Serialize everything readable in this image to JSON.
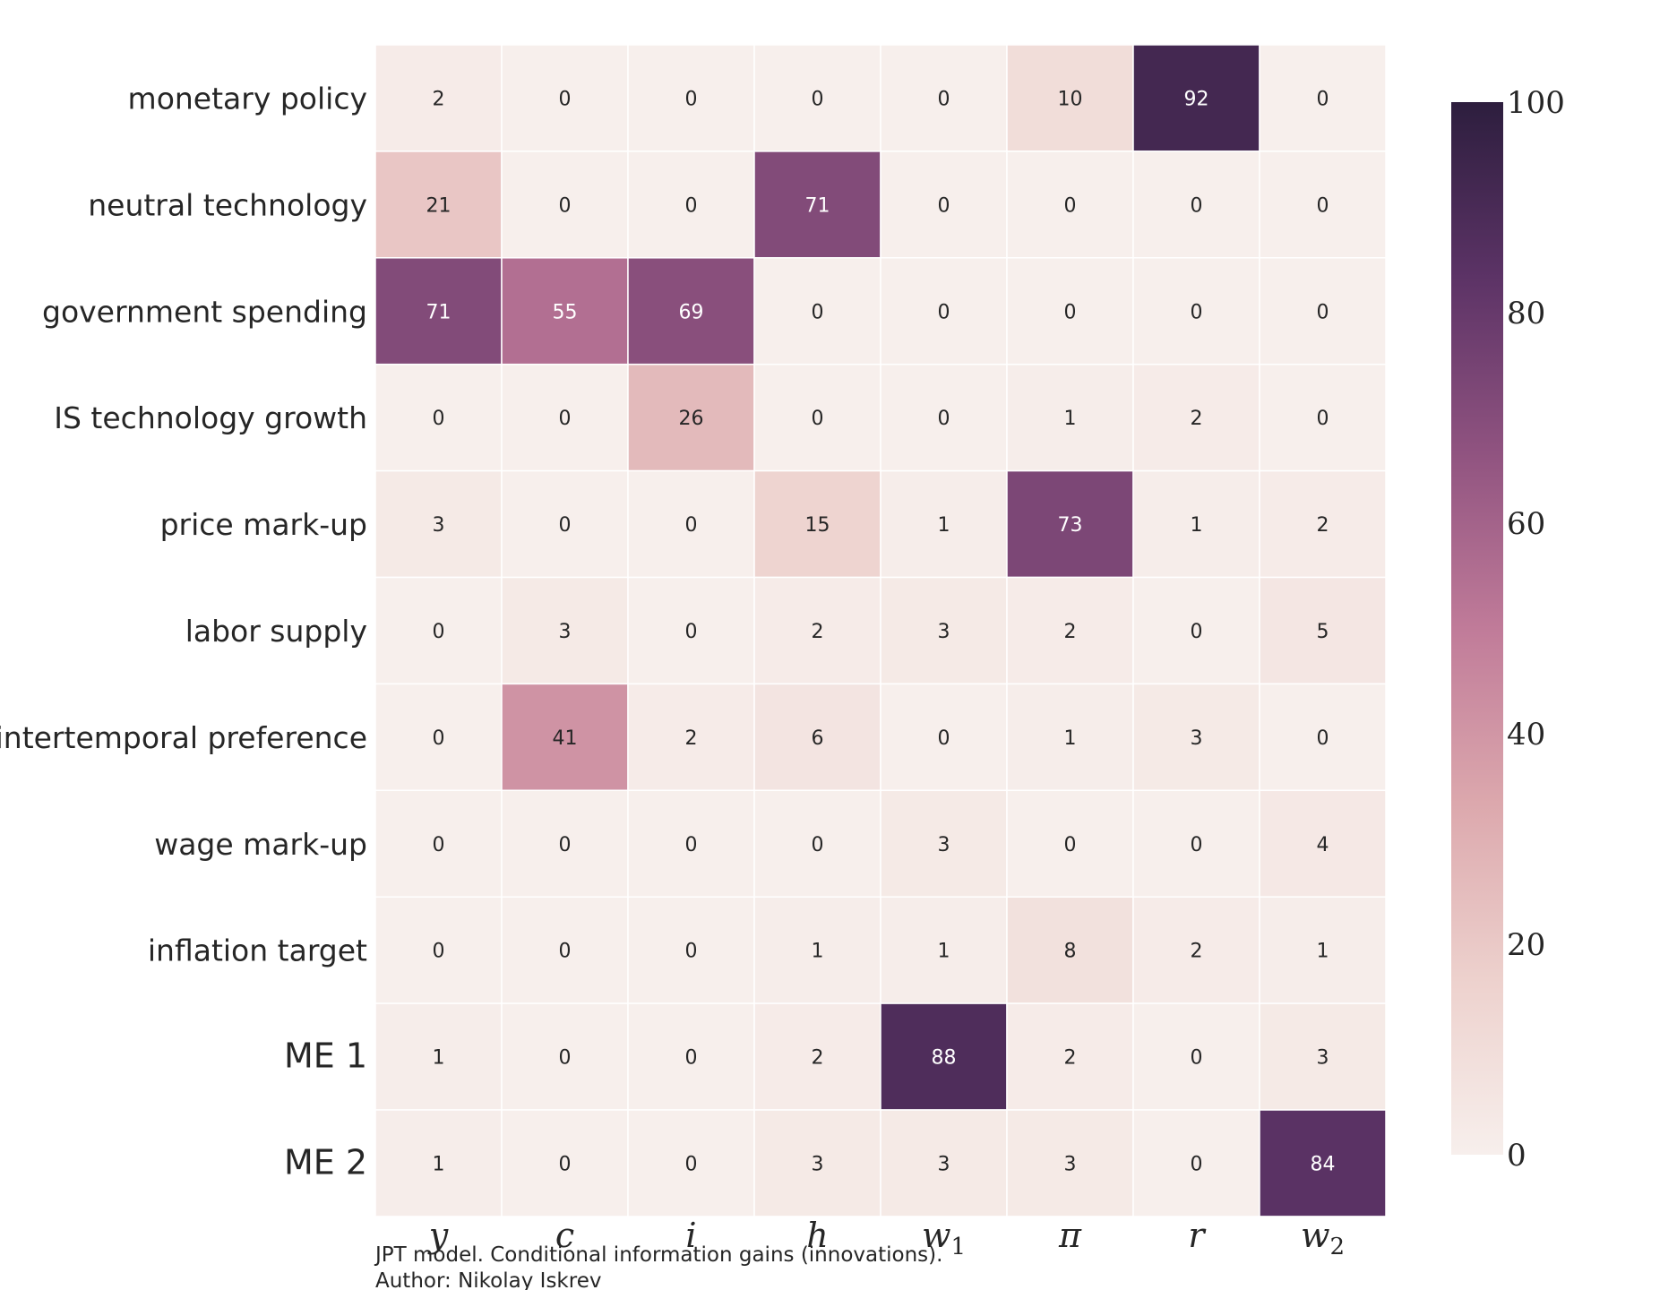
{
  "chart_data": {
    "type": "heatmap",
    "rows": [
      "monetary policy",
      "neutral technology",
      "government spending",
      "IS technology growth",
      "price mark-up",
      "labor supply",
      "intertemporal preference",
      "wage mark-up",
      "inflation target",
      "ME 1",
      "ME 2"
    ],
    "columns": [
      "y",
      "c",
      "i",
      "h",
      "w1",
      "π",
      "r",
      "w2"
    ],
    "values": [
      [
        2,
        0,
        0,
        0,
        0,
        10,
        92,
        0
      ],
      [
        21,
        0,
        0,
        71,
        0,
        0,
        0,
        0
      ],
      [
        71,
        55,
        69,
        0,
        0,
        0,
        0,
        0
      ],
      [
        0,
        0,
        26,
        0,
        0,
        1,
        2,
        0
      ],
      [
        3,
        0,
        0,
        15,
        1,
        73,
        1,
        2
      ],
      [
        0,
        3,
        0,
        2,
        3,
        2,
        0,
        5
      ],
      [
        0,
        41,
        2,
        6,
        0,
        1,
        3,
        0
      ],
      [
        0,
        0,
        0,
        0,
        3,
        0,
        0,
        4
      ],
      [
        0,
        0,
        0,
        1,
        1,
        8,
        2,
        1
      ],
      [
        1,
        0,
        0,
        2,
        88,
        2,
        0,
        3
      ],
      [
        1,
        0,
        0,
        3,
        3,
        3,
        0,
        84
      ]
    ],
    "colorbar": {
      "range": [
        0,
        100
      ],
      "ticks": [
        "0",
        "20",
        "40",
        "60",
        "80",
        "100"
      ]
    },
    "colorscale": [
      "#f7efec",
      "#edd1cd",
      "#dca8ad",
      "#c07b99",
      "#905380",
      "#5c3366",
      "#2d1e3e"
    ],
    "caption": [
      "JPT model. Conditional information gains (innovations).",
      "Author: Nikolay Iskrev"
    ]
  }
}
